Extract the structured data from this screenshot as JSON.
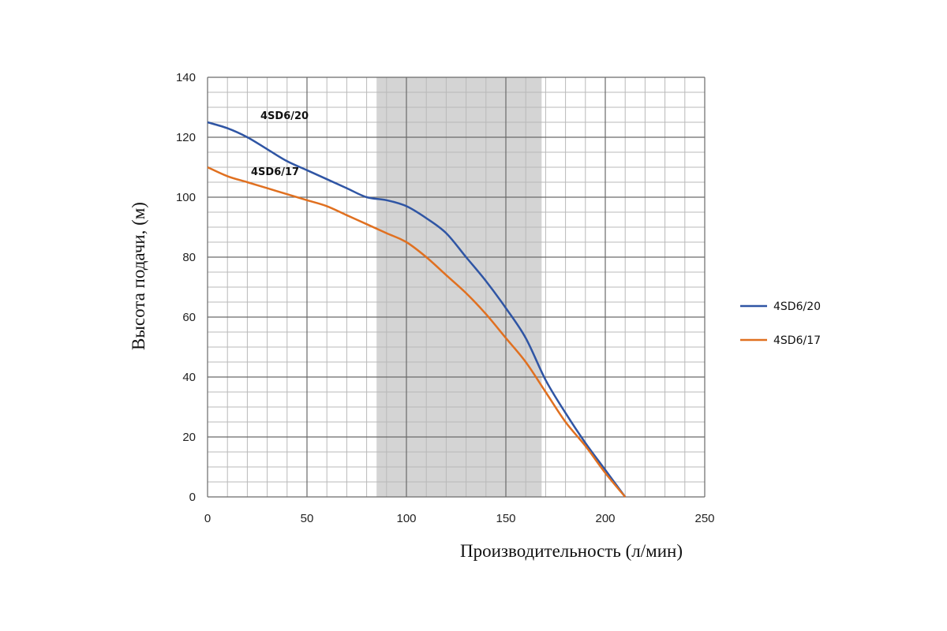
{
  "chart_data": {
    "type": "line",
    "xlabel": "Производительность (л/мин)",
    "ylabel": "Высота подачи, (м)",
    "xlim": [
      0,
      250
    ],
    "ylim": [
      0,
      140
    ],
    "x_ticks": [
      0,
      50,
      100,
      150,
      200,
      250
    ],
    "y_ticks": [
      0,
      20,
      40,
      60,
      80,
      100,
      120,
      140
    ],
    "grid": true,
    "legend_position": "right",
    "highlight_range": [
      85,
      168
    ],
    "colors": {
      "4SD6/20": "#2f55a4",
      "4SD6/17": "#e07020",
      "highlight": "#d4d4d4"
    },
    "series": [
      {
        "name": "4SD6/20",
        "x": [
          0,
          10,
          20,
          30,
          40,
          50,
          60,
          70,
          80,
          90,
          100,
          110,
          120,
          130,
          140,
          150,
          160,
          170,
          180,
          190,
          200,
          210
        ],
        "y": [
          125,
          123,
          120,
          116,
          112,
          109,
          106,
          103,
          100,
          99,
          97,
          93,
          88,
          80,
          72,
          63,
          53,
          39,
          28,
          18,
          9,
          0
        ]
      },
      {
        "name": "4SD6/17",
        "x": [
          0,
          10,
          20,
          30,
          40,
          50,
          60,
          70,
          80,
          90,
          100,
          110,
          120,
          130,
          140,
          150,
          160,
          170,
          180,
          190,
          200,
          210
        ],
        "y": [
          110,
          107,
          105,
          103,
          101,
          99,
          97,
          94,
          91,
          88,
          85,
          80,
          74,
          68,
          61,
          53,
          45,
          35,
          25,
          17,
          8,
          0
        ]
      }
    ],
    "curve_labels": [
      "4SD6/20",
      "4SD6/17"
    ]
  }
}
